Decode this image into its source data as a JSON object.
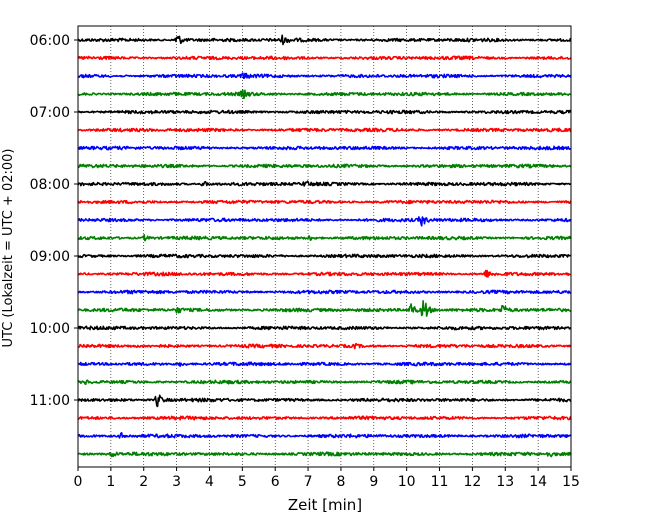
{
  "chart_data": {
    "type": "line",
    "title": "",
    "xlabel": "Zeit  [min]",
    "ylabel": "UTC (Lokalzeit = UTC + 02:00)",
    "xlim": [
      0,
      15
    ],
    "x_ticks": [
      "0",
      "1",
      "2",
      "3",
      "4",
      "5",
      "6",
      "7",
      "8",
      "9",
      "10",
      "11",
      "12",
      "13",
      "14",
      "15"
    ],
    "y_ticks": [
      {
        "label": "06:00",
        "row": 0
      },
      {
        "label": "07:00",
        "row": 4
      },
      {
        "label": "08:00",
        "row": 8
      },
      {
        "label": "09:00",
        "row": 12
      },
      {
        "label": "10:00",
        "row": 16
      },
      {
        "label": "11:00",
        "row": 20
      }
    ],
    "row_interval_minutes": 15,
    "row_count": 24,
    "first_row_start": "06:00",
    "grid": {
      "vertical": true,
      "style": "dotted"
    },
    "color_cycle": [
      "#000000",
      "#ff0000",
      "#0000ff",
      "#008000"
    ],
    "events": [
      {
        "row": 0,
        "minute": 3.0,
        "amplitude": 8
      },
      {
        "row": 0,
        "minute": 6.2,
        "amplitude": 4
      },
      {
        "row": 2,
        "minute": 5.0,
        "amplitude": 3
      },
      {
        "row": 3,
        "minute": 5.0,
        "amplitude": 4
      },
      {
        "row": 8,
        "minute": 3.8,
        "amplitude": 3
      },
      {
        "row": 8,
        "minute": 6.9,
        "amplitude": 3
      },
      {
        "row": 10,
        "minute": 10.4,
        "amplitude": 8
      },
      {
        "row": 11,
        "minute": 2.0,
        "amplitude": 3
      },
      {
        "row": 11,
        "minute": 7.0,
        "amplitude": 3
      },
      {
        "row": 13,
        "minute": 12.4,
        "amplitude": 4
      },
      {
        "row": 15,
        "minute": 10.1,
        "amplitude": 9
      },
      {
        "row": 15,
        "minute": 10.5,
        "amplitude": 14
      },
      {
        "row": 15,
        "minute": 12.9,
        "amplitude": 5
      },
      {
        "row": 15,
        "minute": 3.0,
        "amplitude": 3
      },
      {
        "row": 17,
        "minute": 8.4,
        "amplitude": 2
      },
      {
        "row": 18,
        "minute": 3.1,
        "amplitude": 2
      },
      {
        "row": 19,
        "minute": 0.2,
        "amplitude": 2
      },
      {
        "row": 20,
        "minute": 2.4,
        "amplitude": 8
      },
      {
        "row": 22,
        "minute": 1.3,
        "amplitude": 3
      },
      {
        "row": 23,
        "minute": 1.0,
        "amplitude": 3
      },
      {
        "row": 23,
        "minute": 14.3,
        "amplitude": 3
      }
    ]
  }
}
